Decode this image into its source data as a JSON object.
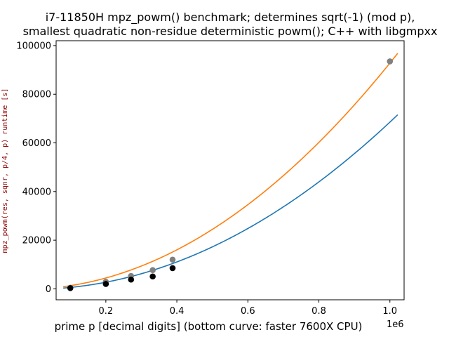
{
  "chart_data": {
    "type": "scatter",
    "title_line1": "i7-11850H mpz_powm() benchmark; determines sqrt(-1) (mod p),",
    "title_line2": "smallest quadratic non-residue deterministic powm(); C++ with libgmpxx",
    "xlabel": "prime p [decimal digits]  (bottom curve: faster 7600X CPU)",
    "ylabel": "mpz_powm(res, sqnr, p/4, p) runtime [s]",
    "x_offset_label": "1e6",
    "xlim": [
      60000,
      1040000
    ],
    "ylim": [
      -4500,
      102000
    ],
    "x_ticks": [
      200000,
      400000,
      600000,
      800000,
      1000000
    ],
    "x_tick_labels": [
      "0.2",
      "0.4",
      "0.6",
      "0.8",
      "1.0"
    ],
    "y_ticks": [
      0,
      20000,
      40000,
      60000,
      80000,
      100000
    ],
    "y_tick_labels": [
      "0",
      "20000",
      "40000",
      "60000",
      "80000",
      "100000"
    ],
    "series": [
      {
        "color": "#808080",
        "points": [
          [
            100000,
            450
          ],
          [
            200000,
            2900
          ],
          [
            271000,
            5300
          ],
          [
            332000,
            7700
          ],
          [
            388000,
            12000
          ],
          [
            1000000,
            93500
          ]
        ]
      },
      {
        "color": "#000000",
        "points": [
          [
            100000,
            300
          ],
          [
            200000,
            2000
          ],
          [
            271000,
            3800
          ],
          [
            332000,
            5100
          ],
          [
            388000,
            8500
          ]
        ]
      }
    ],
    "fits": [
      {
        "color": "#ff7f0e",
        "coeffs": [
          8.766e-08,
          0.00524,
          -91
        ],
        "x_range": [
          80000,
          1022000
        ]
      },
      {
        "color": "#1f77b4",
        "coeffs": [
          6.766e-08,
          0.00107,
          -194
        ],
        "x_range": [
          80000,
          1022000
        ]
      }
    ]
  }
}
